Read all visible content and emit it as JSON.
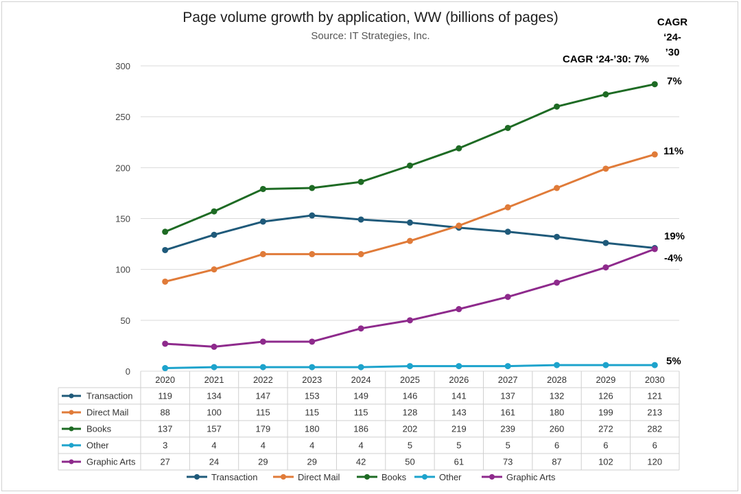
{
  "chart_data": {
    "type": "line",
    "title": "Page volume growth by application, WW (billions of pages)",
    "subtitle": "Source: IT Strategies, Inc.",
    "cagr_header": [
      "CAGR",
      "‘24-",
      "’30"
    ],
    "cagr_note": "CAGR ‘24-’30: 7%",
    "x": [
      "2020",
      "2021",
      "2022",
      "2023",
      "2024",
      "2025",
      "2026",
      "2027",
      "2028",
      "2029",
      "2030"
    ],
    "ylim": [
      0,
      300
    ],
    "yticks": [
      0,
      50,
      100,
      150,
      200,
      250,
      300
    ],
    "grid": true,
    "legend_position": "bottom",
    "series": [
      {
        "name": "Transaction",
        "color": "#1f5a7a",
        "cagr": "-4%",
        "values": [
          119,
          134,
          147,
          153,
          149,
          146,
          141,
          137,
          132,
          126,
          121
        ]
      },
      {
        "name": "Direct Mail",
        "color": "#e07b39",
        "cagr": "11%",
        "values": [
          88,
          100,
          115,
          115,
          115,
          128,
          143,
          161,
          180,
          199,
          213
        ]
      },
      {
        "name": "Books",
        "color": "#1e6b24",
        "cagr": "7%",
        "values": [
          137,
          157,
          179,
          180,
          186,
          202,
          219,
          239,
          260,
          272,
          282
        ]
      },
      {
        "name": "Other",
        "color": "#1da3cc",
        "cagr": "5%",
        "values": [
          3,
          4,
          4,
          4,
          4,
          5,
          5,
          5,
          6,
          6,
          6
        ]
      },
      {
        "name": "Graphic Arts",
        "color": "#8e2a8c",
        "cagr": "19%",
        "values": [
          27,
          24,
          29,
          29,
          42,
          50,
          61,
          73,
          87,
          102,
          120
        ]
      }
    ]
  }
}
